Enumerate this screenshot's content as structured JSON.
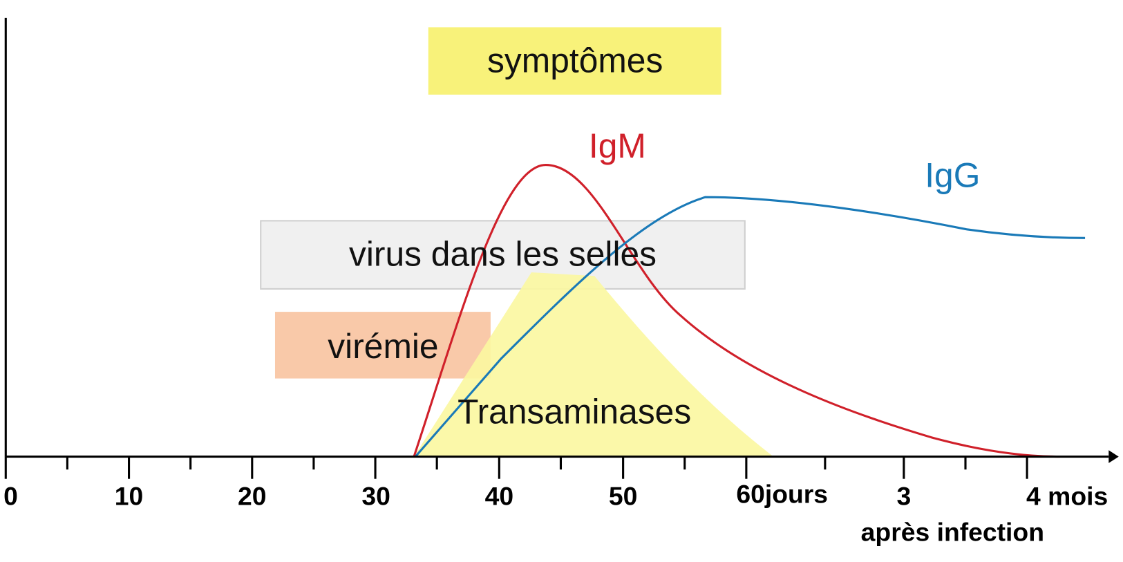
{
  "labels": {
    "symptoms": "symptômes",
    "igm": "IgM",
    "igg": "IgG",
    "stool_virus": "virus dans les selles",
    "viremia": "virémie",
    "transaminases": "Transaminases"
  },
  "x_axis": {
    "ticks": [
      "0",
      "10",
      "20",
      "30",
      "40",
      "50",
      "60jours",
      "3",
      "4 mois"
    ],
    "caption": "après infection"
  }
}
